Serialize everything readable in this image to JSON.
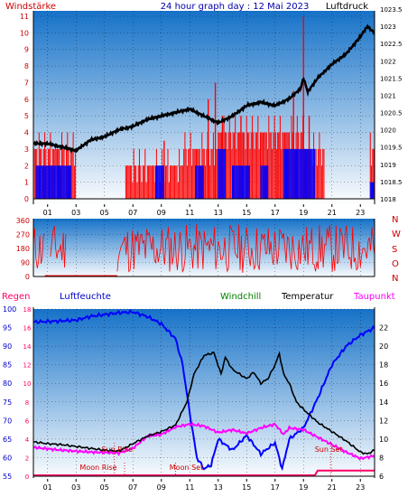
{
  "header": {
    "left": "Windstärke",
    "center": "24 hour graph day : 12 Mai 2023",
    "right": "Luftdruck"
  },
  "legend": {
    "regen": "Regen",
    "luftfeuchte": "Luftfeuchte",
    "windchill": "Windchill",
    "temperatur": "Temperatur",
    "taupunkt": "Taupunkt"
  },
  "annotations": {
    "sun_rise": "Sun Rise",
    "sun_set": "Sun Set",
    "moon_rise": "Moon Rise",
    "moon_set": "Moon Set"
  },
  "colors": {
    "wind_bar": "#ff0000",
    "wind_dir": "#0000ff",
    "pressure": "#000000",
    "humidity": "#0000ff",
    "temperature": "#000000",
    "dewpoint": "#ff00ff",
    "rain": "#ff0066",
    "windchill": "#008000",
    "compass": "#cc0000"
  },
  "chart_data": [
    {
      "type": "bar",
      "x_ticks": [
        "01",
        "03",
        "05",
        "07",
        "09",
        "11",
        "13",
        "15",
        "17",
        "19",
        "21",
        "23"
      ],
      "left_axis": {
        "range": [
          0,
          11
        ],
        "ticks": [
          0,
          1,
          2,
          3,
          4,
          5,
          6,
          7,
          8,
          9,
          10,
          11
        ]
      },
      "right_axis": {
        "range": [
          1018,
          1023.5
        ],
        "ticks": [
          "1018",
          "1018.5",
          "1019",
          "1019.5",
          "1020",
          "1020.5",
          "1021",
          "1021.5",
          "1022",
          "1022.5",
          "1023",
          "1023.5"
        ]
      },
      "series": [
        {
          "kind": "pressure_hpa",
          "points": [
            [
              0,
              1019.6
            ],
            [
              1,
              1019.6
            ],
            [
              2,
              1019.5
            ],
            [
              3,
              1019.4
            ],
            [
              4,
              1019.7
            ],
            [
              5,
              1019.8
            ],
            [
              6,
              1020.0
            ],
            [
              7,
              1020.1
            ],
            [
              8,
              1020.3
            ],
            [
              9,
              1020.4
            ],
            [
              10,
              1020.5
            ],
            [
              11,
              1020.6
            ],
            [
              12,
              1020.4
            ],
            [
              13,
              1020.2
            ],
            [
              14,
              1020.4
            ],
            [
              15,
              1020.7
            ],
            [
              16,
              1020.8
            ],
            [
              17,
              1020.7
            ],
            [
              18,
              1020.9
            ],
            [
              18.8,
              1021.2
            ],
            [
              19,
              1021.5
            ],
            [
              19.3,
              1021.1
            ],
            [
              20,
              1021.5
            ],
            [
              21,
              1021.9
            ],
            [
              22,
              1022.2
            ],
            [
              23,
              1022.7
            ],
            [
              23.5,
              1023.0
            ],
            [
              24,
              1022.8
            ]
          ]
        },
        {
          "kind": "gust_bft",
          "blocks": [
            [
              0,
              3,
              3
            ],
            [
              6.5,
              10.5,
              2
            ],
            [
              10.5,
              13,
              3
            ],
            [
              13,
              16,
              4
            ],
            [
              16,
              19,
              4
            ],
            [
              19,
              20.5,
              3
            ],
            [
              23.7,
              24,
              3
            ]
          ],
          "peaks": [
            [
              9.2,
              3.5
            ],
            [
              12.3,
              6
            ],
            [
              12.8,
              7
            ],
            [
              13.3,
              5
            ],
            [
              14.6,
              5
            ],
            [
              17.2,
              4
            ],
            [
              18.3,
              6.5
            ],
            [
              19.0,
              11
            ],
            [
              19.4,
              5
            ]
          ]
        },
        {
          "kind": "avg_wind_bft",
          "blocks": [
            [
              0.2,
              2.7,
              2
            ],
            [
              8.6,
              9.2,
              2
            ],
            [
              11.4,
              12.0,
              2
            ],
            [
              13.0,
              13.5,
              3
            ],
            [
              14.0,
              15.2,
              2
            ],
            [
              16.0,
              16.5,
              2
            ],
            [
              17.6,
              19.8,
              3
            ],
            [
              23.7,
              24,
              1
            ]
          ]
        }
      ]
    },
    {
      "type": "line",
      "y_ticks": [
        "0",
        "90",
        "180",
        "270",
        "360"
      ],
      "compass": [
        "N",
        "W",
        "S",
        "O",
        "N"
      ],
      "segments": [
        [
          0,
          0.8
        ],
        [
          1.2,
          2.3
        ],
        [
          5.9,
          24
        ]
      ]
    },
    {
      "type": "line",
      "left_axis1": {
        "label": "rain",
        "ticks": [
          "0",
          "2",
          "4",
          "6",
          "8",
          "10",
          "12",
          "14",
          "16",
          "18"
        ]
      },
      "left_axis2": {
        "label": "humidity",
        "range": [
          55,
          100
        ],
        "ticks": [
          "55",
          "60",
          "65",
          "70",
          "75",
          "80",
          "85",
          "90",
          "95",
          "100"
        ]
      },
      "right_axis": {
        "label": "temp",
        "range": [
          6,
          24
        ],
        "ticks": [
          "6",
          "8",
          "10",
          "12",
          "14",
          "16",
          "18",
          "20",
          "22"
        ]
      },
      "markers": {
        "sun_rise": 5.7,
        "sun_set": 20.9,
        "moon_rise": 4.7,
        "moon_set": 10.0
      },
      "series": [
        {
          "kind": "temperature_c",
          "points": [
            [
              0,
              9.7
            ],
            [
              1,
              9.5
            ],
            [
              2,
              9.4
            ],
            [
              3,
              9.2
            ],
            [
              4,
              9.0
            ],
            [
              5,
              8.8
            ],
            [
              6,
              8.7
            ],
            [
              7,
              9.5
            ],
            [
              8,
              10.3
            ],
            [
              9,
              10.8
            ],
            [
              10,
              11.5
            ],
            [
              10.8,
              14
            ],
            [
              11.3,
              17
            ],
            [
              12,
              19
            ],
            [
              12.7,
              19.3
            ],
            [
              13.2,
              17
            ],
            [
              13.5,
              18.8
            ],
            [
              14,
              17.5
            ],
            [
              14.5,
              17
            ],
            [
              15,
              16.5
            ],
            [
              15.5,
              17.2
            ],
            [
              16,
              16
            ],
            [
              16.5,
              16.5
            ],
            [
              17,
              18
            ],
            [
              17.3,
              19.2
            ],
            [
              17.6,
              17
            ],
            [
              18,
              16
            ],
            [
              18.5,
              14
            ],
            [
              19,
              13.2
            ],
            [
              19.5,
              12.5
            ],
            [
              20,
              11.8
            ],
            [
              20.5,
              11.3
            ],
            [
              21,
              10.8
            ],
            [
              22,
              9.8
            ],
            [
              23,
              8.6
            ],
            [
              23.5,
              8.4
            ],
            [
              24,
              8.8
            ]
          ]
        },
        {
          "kind": "humidity_pct",
          "points": [
            [
              0,
              96.5
            ],
            [
              2,
              96.8
            ],
            [
              3,
              97
            ],
            [
              4,
              98
            ],
            [
              6,
              99
            ],
            [
              7,
              99.2
            ],
            [
              8,
              98
            ],
            [
              9,
              96
            ],
            [
              10,
              92
            ],
            [
              10.5,
              85
            ],
            [
              11,
              72
            ],
            [
              11.5,
              60
            ],
            [
              12,
              57
            ],
            [
              12.5,
              58
            ],
            [
              13,
              65
            ],
            [
              14,
              62
            ],
            [
              15,
              66
            ],
            [
              16,
              61
            ],
            [
              17,
              64
            ],
            [
              17.5,
              57
            ],
            [
              18,
              65
            ],
            [
              19,
              68
            ],
            [
              20,
              76
            ],
            [
              21,
              85
            ],
            [
              22,
              90
            ],
            [
              23,
              93
            ],
            [
              24,
              95
            ]
          ]
        },
        {
          "kind": "dewpoint_c",
          "points": [
            [
              0,
              9.1
            ],
            [
              2,
              8.8
            ],
            [
              4,
              8.6
            ],
            [
              6,
              8.5
            ],
            [
              7,
              9
            ],
            [
              8,
              10.3
            ],
            [
              9,
              10.5
            ],
            [
              10,
              11.3
            ],
            [
              11,
              11.6
            ],
            [
              12,
              11.4
            ],
            [
              13,
              10.7
            ],
            [
              14,
              11
            ],
            [
              15,
              10.6
            ],
            [
              16,
              11.2
            ],
            [
              17,
              11.6
            ],
            [
              17.6,
              10.5
            ],
            [
              18,
              11.2
            ],
            [
              19,
              11
            ],
            [
              20,
              10.2
            ],
            [
              21,
              9.4
            ],
            [
              22,
              8.6
            ],
            [
              23,
              7.9
            ],
            [
              24,
              8.2
            ]
          ]
        },
        {
          "kind": "rain_mm",
          "points": [
            [
              0,
              0.1
            ],
            [
              19.8,
              0.1
            ],
            [
              20,
              0.6
            ],
            [
              24,
              0.6
            ]
          ]
        }
      ]
    }
  ]
}
